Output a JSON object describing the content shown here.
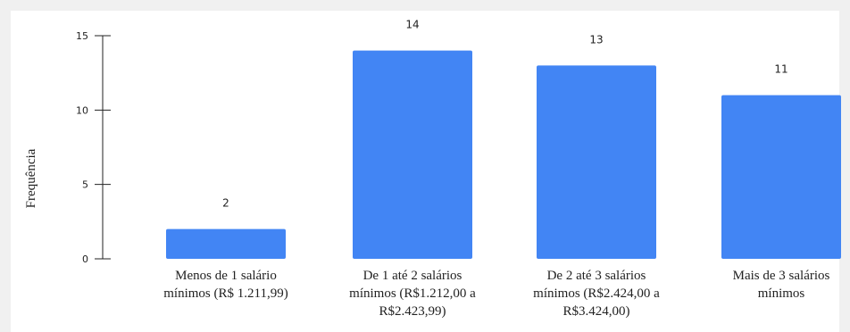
{
  "chart_data": {
    "type": "bar",
    "ylabel": "Frequência",
    "xlabel": "",
    "title": "",
    "categories": [
      [
        "Menos de 1 salário",
        "mínimos (R$ 1.211,99)"
      ],
      [
        "De 1 até 2 salários",
        "mínimos (R$1.212,00 a",
        "R$2.423,99)"
      ],
      [
        "De 2 até 3 salários",
        "mínimos (R$2.424,00 a",
        "R$3.424,00)"
      ],
      [
        "Mais de 3 salários",
        "mínimos"
      ]
    ],
    "values": [
      2,
      14,
      13,
      11
    ],
    "yticks": [
      0,
      5,
      10,
      15
    ],
    "ylim": [
      0,
      15
    ],
    "grid": false,
    "legend": "none",
    "colors": {
      "bar": "#4285f4",
      "axis": "#222222",
      "background_frame": "#f0f0f0"
    }
  }
}
